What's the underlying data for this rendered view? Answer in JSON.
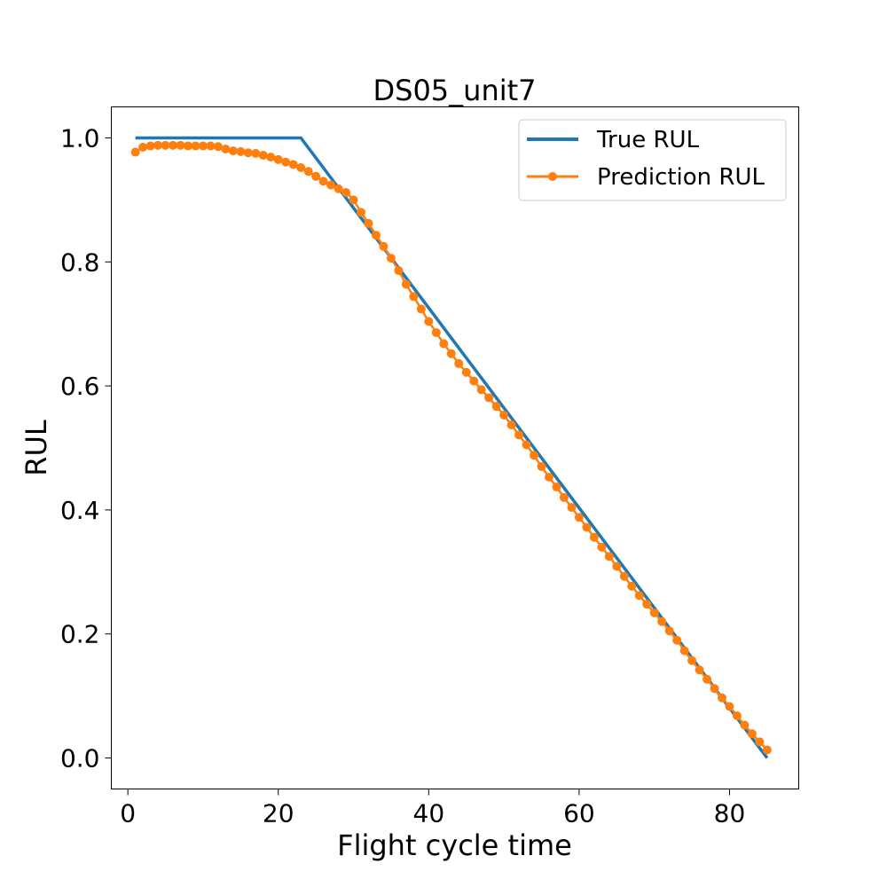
{
  "chart_data": {
    "type": "line",
    "title": "DS05_unit7",
    "xlabel": "Flight cycle time",
    "ylabel": "RUL",
    "xlim": [
      -2.2,
      89.2
    ],
    "ylim": [
      -0.05,
      1.05
    ],
    "xticks": [
      0,
      20,
      40,
      60,
      80
    ],
    "yticks": [
      0.0,
      0.2,
      0.4,
      0.6,
      0.8,
      1.0
    ],
    "xtick_labels": [
      "0",
      "20",
      "40",
      "60",
      "80"
    ],
    "ytick_labels": [
      "0.0",
      "0.2",
      "0.4",
      "0.6",
      "0.8",
      "1.0"
    ],
    "grid": false,
    "legend_position": "top-right",
    "series": [
      {
        "name": "True RUL",
        "color": "#1f77b4",
        "marker": "none",
        "x": [
          1,
          23,
          85
        ],
        "y": [
          1.0,
          1.0,
          0.0
        ]
      },
      {
        "name": "Prediction RUL",
        "color": "#ff7f0e",
        "marker": "circle",
        "x": [
          1,
          2,
          3,
          4,
          5,
          6,
          7,
          8,
          9,
          10,
          11,
          12,
          13,
          14,
          15,
          16,
          17,
          18,
          19,
          20,
          21,
          22,
          23,
          24,
          25,
          26,
          27,
          28,
          29,
          30,
          31,
          32,
          33,
          34,
          35,
          36,
          37,
          38,
          39,
          40,
          41,
          42,
          43,
          44,
          45,
          46,
          47,
          48,
          49,
          50,
          51,
          52,
          53,
          54,
          55,
          56,
          57,
          58,
          59,
          60,
          61,
          62,
          63,
          64,
          65,
          66,
          67,
          68,
          69,
          70,
          71,
          72,
          73,
          74,
          75,
          76,
          77,
          78,
          79,
          80,
          81,
          82,
          83,
          84,
          85
        ],
        "y": [
          0.977,
          0.985,
          0.987,
          0.988,
          0.988,
          0.988,
          0.988,
          0.987,
          0.987,
          0.987,
          0.987,
          0.986,
          0.982,
          0.979,
          0.978,
          0.976,
          0.975,
          0.972,
          0.969,
          0.965,
          0.961,
          0.957,
          0.952,
          0.946,
          0.938,
          0.93,
          0.924,
          0.918,
          0.912,
          0.9,
          0.88,
          0.862,
          0.843,
          0.825,
          0.806,
          0.786,
          0.764,
          0.744,
          0.724,
          0.704,
          0.686,
          0.668,
          0.652,
          0.636,
          0.622,
          0.608,
          0.594,
          0.581,
          0.567,
          0.553,
          0.537,
          0.521,
          0.505,
          0.488,
          0.47,
          0.453,
          0.437,
          0.42,
          0.404,
          0.388,
          0.372,
          0.356,
          0.34,
          0.325,
          0.309,
          0.293,
          0.277,
          0.262,
          0.248,
          0.234,
          0.22,
          0.205,
          0.19,
          0.173,
          0.157,
          0.142,
          0.127,
          0.112,
          0.097,
          0.083,
          0.068,
          0.053,
          0.039,
          0.026,
          0.013
        ]
      }
    ]
  }
}
